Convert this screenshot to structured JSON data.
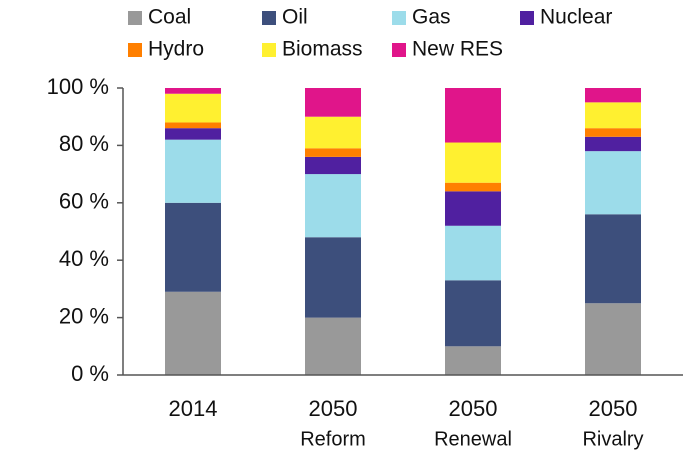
{
  "chart_data": {
    "type": "stacked_bar",
    "categories": [
      [
        "2014"
      ],
      [
        "2050",
        "Reform"
      ],
      [
        "2050",
        "Renewal"
      ],
      [
        "2050",
        "Rivalry"
      ]
    ],
    "series": [
      {
        "name": "Coal",
        "color": "#999999",
        "values": [
          29,
          20,
          10,
          25
        ]
      },
      {
        "name": "Oil",
        "color": "#3d4f7c",
        "values": [
          31,
          28,
          23,
          31
        ]
      },
      {
        "name": "Gas",
        "color": "#9cdcea",
        "values": [
          22,
          22,
          19,
          22
        ]
      },
      {
        "name": "Nuclear",
        "color": "#5020a0",
        "values": [
          4,
          6,
          12,
          5
        ]
      },
      {
        "name": "Hydro",
        "color": "#ff7f00",
        "values": [
          2,
          3,
          3,
          3
        ]
      },
      {
        "name": "Biomass",
        "color": "#fff030",
        "values": [
          10,
          11,
          14,
          9
        ]
      },
      {
        "name": "New RES",
        "color": "#e0158a",
        "values": [
          2,
          10,
          19,
          5
        ]
      }
    ],
    "ylim": [
      0,
      100
    ],
    "yticks": [
      {
        "value": 0,
        "label": "0 %"
      },
      {
        "value": 20,
        "label": "20 %"
      },
      {
        "value": 40,
        "label": "40 %"
      },
      {
        "value": 60,
        "label": "60 %"
      },
      {
        "value": 80,
        "label": "80 %"
      },
      {
        "value": 100,
        "label": "100 %"
      }
    ],
    "legend": "top"
  }
}
